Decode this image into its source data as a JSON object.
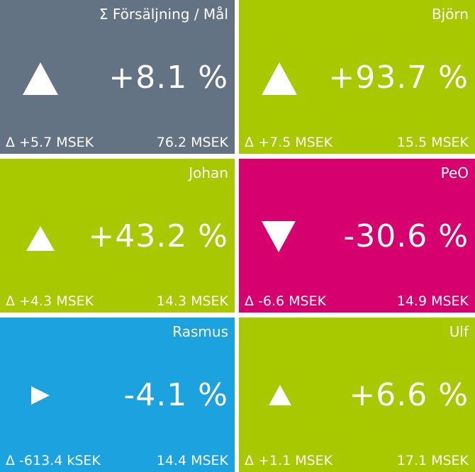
{
  "colors": {
    "gray": "#647384",
    "green": "#a8c800",
    "magenta": "#d7006f",
    "blue": "#1ca2df"
  },
  "tiles": [
    {
      "title": "Σ Försäljning / Mål",
      "percent": "+8.1 %",
      "delta": "Δ +5.7 MSEK",
      "total": "76.2 MSEK",
      "direction": "up",
      "color": "#647384"
    },
    {
      "title": "Björn",
      "percent": "+93.7 %",
      "delta": "Δ +7.5 MSEK",
      "total": "15.5 MSEK",
      "direction": "up",
      "color": "#a8c800"
    },
    {
      "title": "Johan",
      "percent": "+43.2 %",
      "delta": "Δ +4.3 MSEK",
      "total": "14.3 MSEK",
      "direction": "up",
      "color": "#a8c800"
    },
    {
      "title": "PeO",
      "percent": "-30.6 %",
      "delta": "Δ -6.6 MSEK",
      "total": "14.9 MSEK",
      "direction": "down",
      "color": "#d7006f"
    },
    {
      "title": "Rasmus",
      "percent": "-4.1 %",
      "delta": "Δ -613.4 kSEK",
      "total": "14.4 MSEK",
      "direction": "right",
      "color": "#1ca2df"
    },
    {
      "title": "Ulf",
      "percent": "+6.6 %",
      "delta": "Δ +1.1 MSEK",
      "total": "17.1 MSEK",
      "direction": "up",
      "color": "#a8c800"
    }
  ]
}
